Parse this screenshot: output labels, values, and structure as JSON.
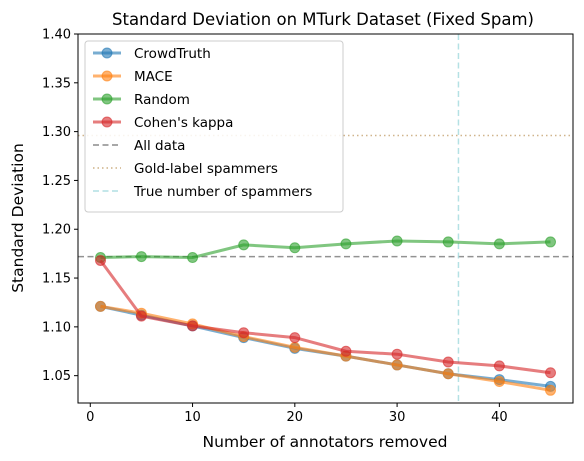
{
  "chart_data": {
    "type": "line",
    "title": "Standard Deviation on MTurk Dataset (Fixed Spam)",
    "xlabel": "Number of annotators removed",
    "ylabel": "Standard Deviation",
    "xlim": [
      -1.2,
      47.2
    ],
    "ylim": [
      1.022,
      1.4
    ],
    "xticks": [
      0,
      10,
      20,
      30,
      40
    ],
    "yticks": [
      1.05,
      1.1,
      1.15,
      1.2,
      1.25,
      1.3,
      1.35,
      1.4
    ],
    "grid": false,
    "legend_position": "top-left",
    "x": [
      1,
      5,
      10,
      15,
      20,
      25,
      30,
      35,
      40,
      45
    ],
    "series": [
      {
        "name": "CrowdTruth",
        "color": "#1f77b4",
        "values": [
          1.121,
          1.112,
          1.101,
          1.089,
          1.078,
          1.07,
          1.061,
          1.052,
          1.046,
          1.039
        ]
      },
      {
        "name": "MACE",
        "color": "#ff7f0e",
        "values": [
          1.121,
          1.114,
          1.103,
          1.09,
          1.079,
          1.07,
          1.061,
          1.052,
          1.044,
          1.035
        ]
      },
      {
        "name": "Random",
        "color": "#2ca02c",
        "values": [
          1.171,
          1.172,
          1.171,
          1.184,
          1.181,
          1.185,
          1.188,
          1.187,
          1.185,
          1.187
        ]
      },
      {
        "name": "Cohen's kappa",
        "color": "#d62728",
        "values": [
          1.168,
          1.111,
          1.101,
          1.094,
          1.089,
          1.075,
          1.072,
          1.064,
          1.06,
          1.053
        ]
      }
    ],
    "reference_lines": [
      {
        "name": "All data",
        "orientation": "horizontal",
        "value": 1.172,
        "color": "#7f7f7f",
        "style": "dashed"
      },
      {
        "name": "Gold-label spammers",
        "orientation": "horizontal",
        "value": 1.296,
        "color": "#c8a878",
        "style": "dotted"
      },
      {
        "name": "True number of spammers",
        "orientation": "vertical",
        "value": 36,
        "color": "#a8dce0",
        "style": "dashed"
      }
    ]
  }
}
